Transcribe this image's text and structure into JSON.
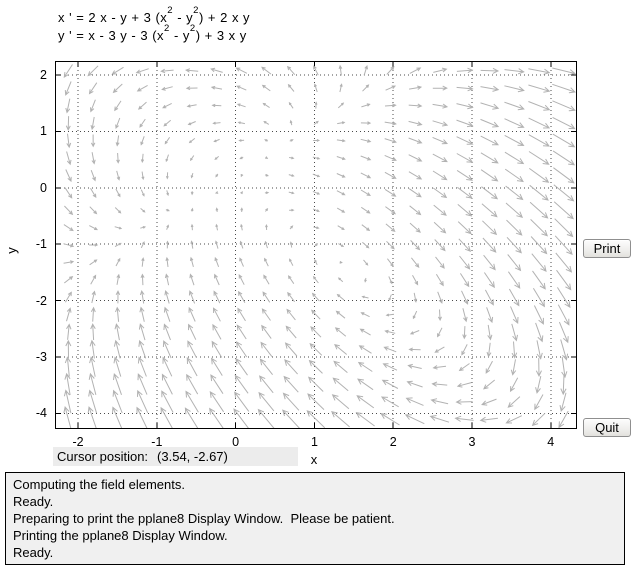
{
  "chart_data": {
    "type": "quiver",
    "tool": "pplane8 Display Window",
    "equations": [
      "x ' = 2 x - y + 3 (x^2 - y^2) + 2 x y",
      "y ' = x - 3 y - 3 (x^2 - y^2) + 3 x y"
    ],
    "field": {
      "x_prime_coeffs": {
        "x": 2,
        "y": -1,
        "x2_minus_y2": 3,
        "xy": 2
      },
      "y_prime_coeffs": {
        "x": 1,
        "y": -3,
        "x2_minus_y2": -3,
        "xy": 3
      }
    },
    "xlabel": "x",
    "ylabel": "y",
    "x_range": [
      -2.28,
      4.32
    ],
    "y_range": [
      -4.26,
      2.23
    ],
    "xticks": [
      -2,
      -1,
      0,
      1,
      2,
      3,
      4
    ],
    "yticks": [
      2,
      1,
      0,
      -1,
      -2,
      -3,
      -4
    ],
    "grid": "dotted",
    "legend": "none",
    "arrows_per_axis": 21,
    "colors": {
      "arrow": "#b2b2b2",
      "gridline": "#4a4a4a",
      "axis": "#000000",
      "plot_bg": "#ffffff"
    }
  },
  "controls": {
    "print_label": "Print",
    "quit_label": "Quit"
  },
  "cursor_readout": {
    "label": "Cursor position:",
    "value": "(3.54, -2.67)"
  },
  "status_log": [
    "Computing the field elements.",
    "Ready.",
    "Preparing to print the pplane8 Display Window.  Please be patient.",
    "Printing the pplane8 Display Window.",
    "Ready."
  ]
}
